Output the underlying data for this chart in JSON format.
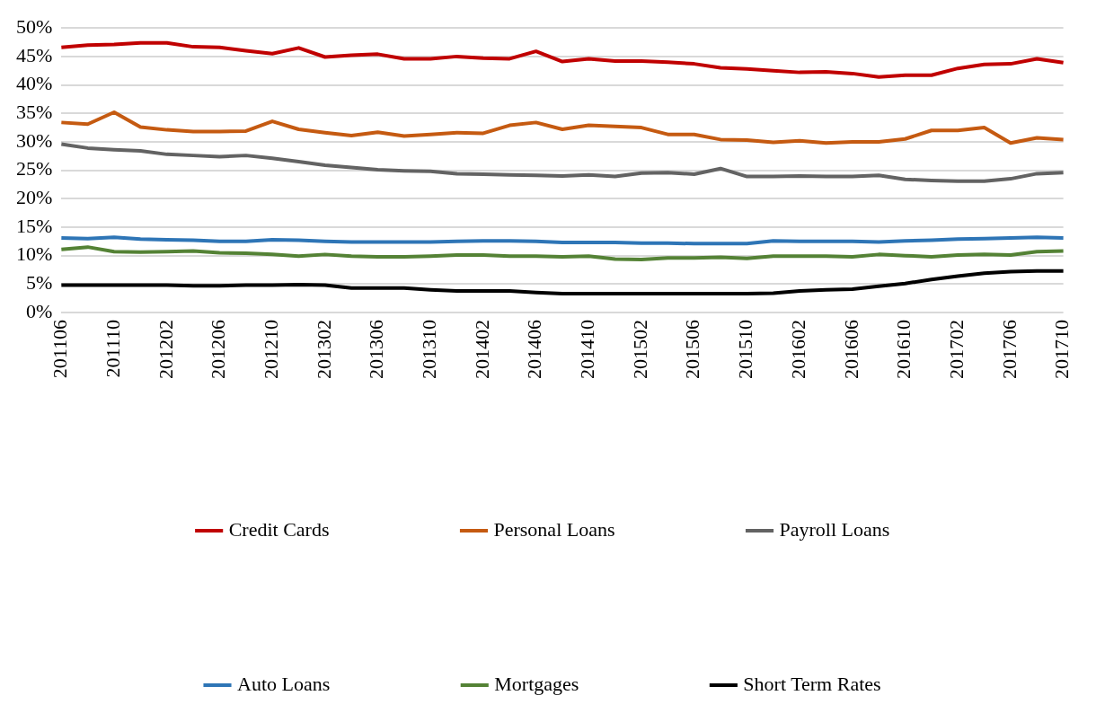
{
  "chart_data": {
    "type": "line",
    "categories": [
      "201106",
      null,
      "201110",
      null,
      "201202",
      null,
      "201206",
      null,
      "201210",
      null,
      "201302",
      null,
      "201306",
      null,
      "201310",
      null,
      "201402",
      null,
      "201406",
      null,
      "201410",
      null,
      "201502",
      null,
      "201506",
      null,
      "201510",
      null,
      "201602",
      null,
      "201606",
      null,
      "201610",
      null,
      "201702",
      null,
      "201706",
      null,
      "201710"
    ],
    "series": [
      {
        "name": "Credit Cards",
        "color": "#c00000",
        "values": [
          46.6,
          47.0,
          47.1,
          47.4,
          47.4,
          46.7,
          46.6,
          46.0,
          45.5,
          46.5,
          44.9,
          45.2,
          45.4,
          44.6,
          44.6,
          45.0,
          44.7,
          44.6,
          45.9,
          44.1,
          44.6,
          44.2,
          44.2,
          44.0,
          43.7,
          43.0,
          42.8,
          42.5,
          42.2,
          42.3,
          42.0,
          41.4,
          41.7,
          41.7,
          42.9,
          43.6,
          43.7,
          44.6,
          43.9
        ]
      },
      {
        "name": "Personal Loans",
        "color": "#c55a11",
        "values": [
          33.4,
          33.1,
          35.2,
          32.6,
          32.1,
          31.8,
          31.8,
          31.9,
          33.6,
          32.2,
          31.6,
          31.1,
          31.7,
          31.0,
          31.3,
          31.6,
          31.5,
          32.9,
          33.4,
          32.2,
          32.9,
          32.7,
          32.5,
          31.3,
          31.3,
          30.4,
          30.3,
          29.9,
          30.2,
          29.8,
          30.0,
          30.0,
          30.5,
          32.0,
          32.0,
          32.5,
          29.8,
          30.7,
          30.4
        ]
      },
      {
        "name": "Payroll Loans",
        "color": "#636363",
        "values": [
          29.6,
          28.9,
          28.6,
          28.4,
          27.8,
          27.6,
          27.4,
          27.6,
          27.1,
          26.5,
          25.9,
          25.5,
          25.1,
          24.9,
          24.8,
          24.4,
          24.3,
          24.2,
          24.1,
          24.0,
          24.2,
          23.9,
          24.5,
          24.6,
          24.3,
          25.3,
          23.9,
          23.9,
          24.0,
          23.9,
          23.9,
          24.1,
          23.4,
          23.2,
          23.1,
          23.1,
          23.5,
          24.4,
          24.6
        ]
      },
      {
        "name": "Auto Loans",
        "color": "#2e75b6",
        "values": [
          13.1,
          13.0,
          13.2,
          12.9,
          12.8,
          12.7,
          12.5,
          12.5,
          12.8,
          12.7,
          12.5,
          12.4,
          12.4,
          12.4,
          12.4,
          12.5,
          12.6,
          12.6,
          12.5,
          12.3,
          12.3,
          12.3,
          12.2,
          12.2,
          12.1,
          12.1,
          12.1,
          12.6,
          12.5,
          12.5,
          12.5,
          12.4,
          12.6,
          12.7,
          12.9,
          13.0,
          13.1,
          13.2,
          13.1
        ]
      },
      {
        "name": "Mortgages",
        "color": "#548235",
        "values": [
          11.1,
          11.5,
          10.7,
          10.6,
          10.7,
          10.8,
          10.5,
          10.4,
          10.2,
          9.9,
          10.2,
          9.9,
          9.8,
          9.8,
          9.9,
          10.1,
          10.1,
          9.9,
          9.9,
          9.8,
          9.9,
          9.4,
          9.3,
          9.6,
          9.6,
          9.7,
          9.5,
          9.9,
          9.9,
          9.9,
          9.8,
          10.2,
          10.0,
          9.8,
          10.1,
          10.2,
          10.1,
          10.7,
          10.8
        ]
      },
      {
        "name": "Short Term Rates",
        "color": "#000000",
        "values": [
          4.8,
          4.8,
          4.8,
          4.8,
          4.8,
          4.7,
          4.7,
          4.8,
          4.8,
          4.9,
          4.8,
          4.3,
          4.3,
          4.3,
          4.0,
          3.8,
          3.8,
          3.8,
          3.5,
          3.3,
          3.3,
          3.3,
          3.3,
          3.3,
          3.3,
          3.3,
          3.3,
          3.4,
          3.8,
          4.0,
          4.1,
          4.6,
          5.1,
          5.8,
          6.4,
          6.9,
          7.2,
          7.3,
          7.3
        ]
      }
    ],
    "ylim": [
      0,
      50
    ],
    "yticks": [
      {
        "value": 0,
        "label": "0%"
      },
      {
        "value": 5,
        "label": "5%"
      },
      {
        "value": 10,
        "label": "10%"
      },
      {
        "value": 15,
        "label": "15%"
      },
      {
        "value": 20,
        "label": "20%"
      },
      {
        "value": 25,
        "label": "25%"
      },
      {
        "value": 30,
        "label": "30%"
      },
      {
        "value": 35,
        "label": "35%"
      },
      {
        "value": 40,
        "label": "40%"
      },
      {
        "value": 45,
        "label": "45%"
      },
      {
        "value": 50,
        "label": "50%"
      }
    ],
    "grid": "y",
    "legend": "bottom",
    "marker": "none",
    "line_style": "solid"
  }
}
